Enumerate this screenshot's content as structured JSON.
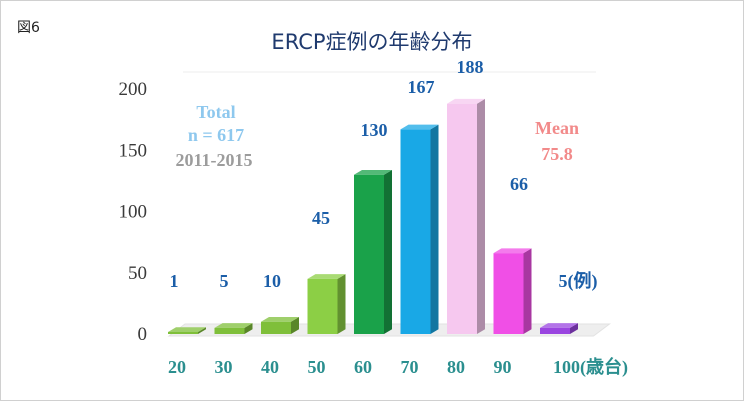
{
  "figure_label": "図6",
  "chart_data": {
    "type": "bar",
    "title": "ERCP症例の年齢分布",
    "categories": [
      "20",
      "30",
      "40",
      "50",
      "60",
      "70",
      "80",
      "90",
      "100(歳台)"
    ],
    "values": [
      1,
      5,
      10,
      45,
      130,
      167,
      188,
      66,
      5
    ],
    "data_labels": [
      "1",
      "5",
      "10",
      "45",
      "130",
      "167",
      "188",
      "66",
      "5(例)"
    ],
    "bar_colors": [
      "#7fbf3a",
      "#7fbf3a",
      "#7fbf3a",
      "#8ccf45",
      "#1aa24a",
      "#19a8e6",
      "#f6c8ef",
      "#f04fe6",
      "#9a45e0"
    ],
    "ylim": [
      0,
      200
    ],
    "yticks": [
      "0",
      "50",
      "100",
      "150",
      "200"
    ],
    "grid": false,
    "annotations": {
      "total_label": "Total",
      "total_value": "n = 617",
      "period": "2011-2015",
      "mean_label": "Mean",
      "mean_value": "75.8"
    },
    "colors": {
      "total": "#8ec8ee",
      "period": "#9c9c9c",
      "mean": "#f28a8a",
      "data_label": "#1b5ea8",
      "x_tick": "#2b8f8f"
    }
  }
}
